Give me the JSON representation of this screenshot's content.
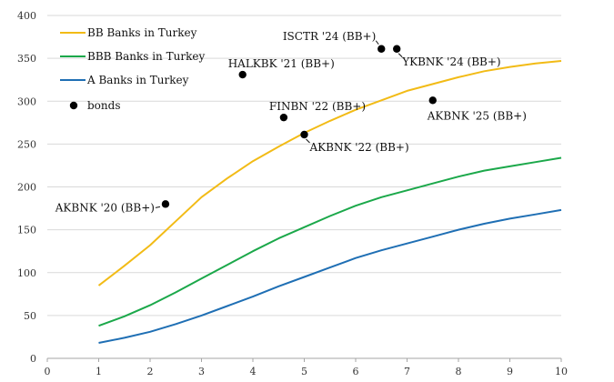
{
  "chart_data": {
    "type": "line",
    "xlim": [
      0,
      10
    ],
    "ylim": [
      0,
      400
    ],
    "xticks": [
      0,
      1,
      2,
      3,
      4,
      5,
      6,
      7,
      8,
      9,
      10
    ],
    "yticks": [
      0,
      50,
      100,
      150,
      200,
      250,
      300,
      350,
      400
    ],
    "grid": "horizontal",
    "legend_position": "top-left",
    "series": [
      {
        "name": "BB Banks in Turkey",
        "color": "#F2BB16",
        "x": [
          1,
          1.5,
          2,
          2.5,
          3,
          3.5,
          4,
          4.5,
          5,
          5.5,
          6,
          6.5,
          7,
          7.5,
          8,
          8.5,
          9,
          9.5,
          10
        ],
        "y": [
          85,
          108,
          132,
          160,
          188,
          210,
          230,
          247,
          263,
          277,
          290,
          301,
          312,
          320,
          328,
          335,
          340,
          344,
          347
        ]
      },
      {
        "name": "BBB Banks in Turkey",
        "color": "#1BA84A",
        "x": [
          1,
          1.5,
          2,
          2.5,
          3,
          3.5,
          4,
          4.5,
          5,
          5.5,
          6,
          6.5,
          7,
          7.5,
          8,
          8.5,
          9,
          9.5,
          10
        ],
        "y": [
          38,
          49,
          62,
          77,
          93,
          109,
          125,
          140,
          153,
          166,
          178,
          188,
          196,
          204,
          212,
          219,
          224,
          229,
          234
        ]
      },
      {
        "name": "A Banks in Turkey",
        "color": "#1F6FB4",
        "x": [
          1,
          1.5,
          2,
          2.5,
          3,
          3.5,
          4,
          4.5,
          5,
          5.5,
          6,
          6.5,
          7,
          7.5,
          8,
          8.5,
          9,
          9.5,
          10
        ],
        "y": [
          18,
          24,
          31,
          40,
          50,
          61,
          72,
          84,
          95,
          106,
          117,
          126,
          134,
          142,
          150,
          157,
          163,
          168,
          173
        ]
      }
    ],
    "scatter": {
      "name": "bonds",
      "color": "#000000",
      "points": [
        {
          "label": "AKBNK '20 (BB+)",
          "x": 2.3,
          "y": 180,
          "label_pos": "left"
        },
        {
          "label": "HALKBK '21 (BB+)",
          "x": 3.8,
          "y": 331,
          "label_pos": "above-right"
        },
        {
          "label": "FINBN '22 (BB+)",
          "x": 4.6,
          "y": 281,
          "label_pos": "above-right"
        },
        {
          "label": "AKBNK '22 (BB+)",
          "x": 5.0,
          "y": 261,
          "label_pos": "below-right"
        },
        {
          "label": "ISCTR '24 (BB+)",
          "x": 6.5,
          "y": 361,
          "label_pos": "above-left"
        },
        {
          "label": "YKBNK '24 (BB+)",
          "x": 6.8,
          "y": 361,
          "label_pos": "below-right"
        },
        {
          "label": "AKBNK '25 (BB+)",
          "x": 7.5,
          "y": 301,
          "label_pos": "below"
        }
      ]
    }
  }
}
